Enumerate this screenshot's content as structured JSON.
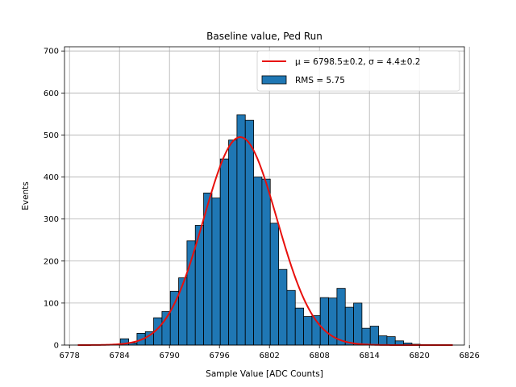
{
  "chart_data": {
    "type": "bar",
    "title": "Baseline value, Ped Run",
    "xlabel": "Sample Value [ADC Counts]",
    "ylabel": "Events",
    "xlim": [
      6777.4,
      6825.4
    ],
    "ylim": [
      0,
      710
    ],
    "xticks": [
      6778,
      6784,
      6790,
      6796,
      6802,
      6808,
      6814,
      6820,
      6826
    ],
    "yticks": [
      0,
      100,
      200,
      300,
      400,
      500,
      600,
      700
    ],
    "grid": true,
    "legend_position": "top-right",
    "histogram": {
      "name": "RMS = 5.75",
      "color": "#1f77b4",
      "edge_color": "#000000",
      "bin_start": 6784.1,
      "bin_width": 1.0,
      "counts": [
        15,
        5,
        28,
        32,
        65,
        80,
        128,
        160,
        248,
        285,
        362,
        350,
        443,
        488,
        548,
        535,
        400,
        395,
        290,
        180,
        130,
        88,
        68,
        70,
        113,
        112,
        135,
        90,
        100,
        40,
        45,
        22,
        20,
        10,
        5,
        2,
        1
      ]
    },
    "fit": {
      "name": "$\\mu = 6798.5$±0.2, $\\sigma = 4.4$±0.2",
      "legend_text": "μ = 6798.5±0.2, σ = 4.4±0.2",
      "color": "#e8100c",
      "mu": 6798.5,
      "sigma": 4.4,
      "amplitude": 495,
      "x_range": [
        6779,
        6824
      ]
    }
  }
}
